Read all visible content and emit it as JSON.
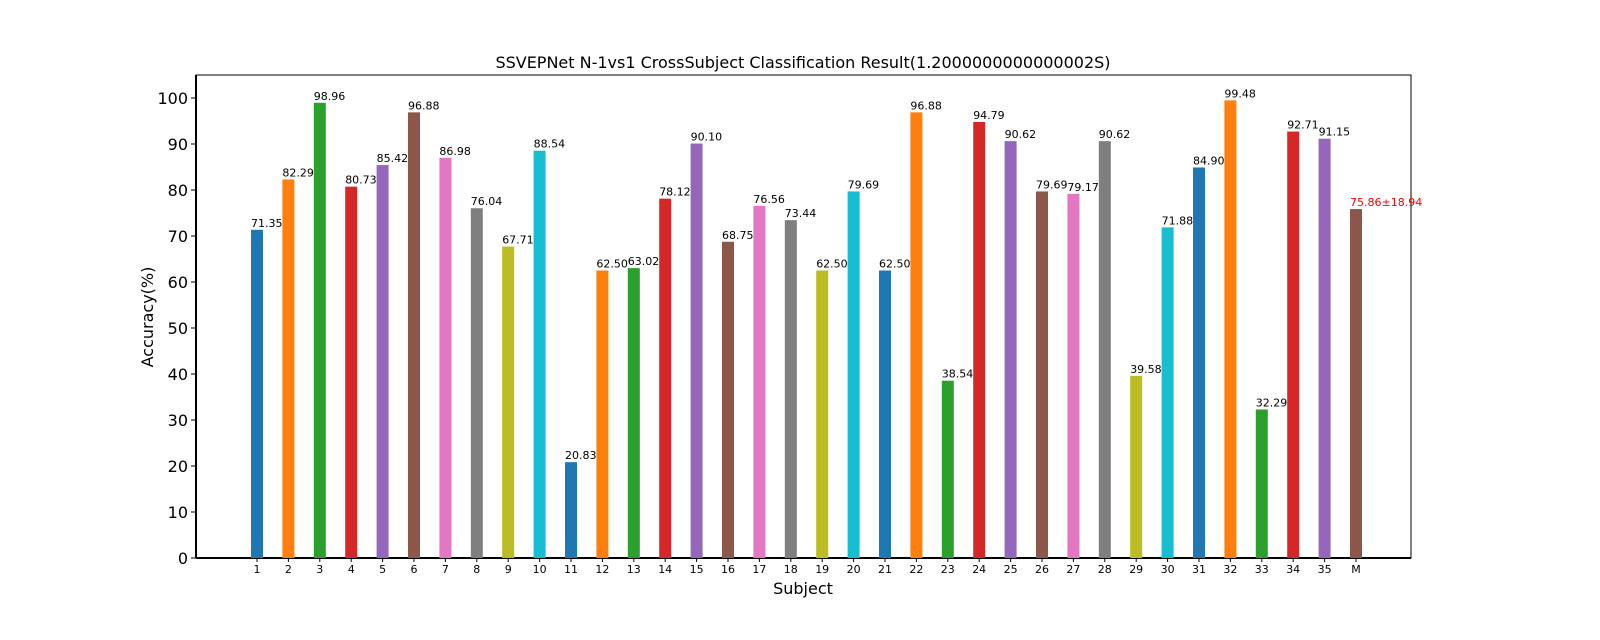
{
  "chart_data": {
    "type": "bar",
    "title": "SSVEPNet N-1vs1 CrossSubject Classification Result(1.2000000000000002S)",
    "xlabel": "Subject",
    "ylabel": "Accuracy(%)",
    "ylim": [
      0,
      105
    ],
    "yticks": [
      0,
      10,
      20,
      30,
      40,
      50,
      60,
      70,
      80,
      90,
      100
    ],
    "grid": false,
    "legend": "none",
    "categories": [
      "1",
      "2",
      "3",
      "4",
      "5",
      "6",
      "7",
      "8",
      "9",
      "10",
      "11",
      "12",
      "13",
      "14",
      "15",
      "16",
      "17",
      "18",
      "19",
      "20",
      "21",
      "22",
      "23",
      "24",
      "25",
      "26",
      "27",
      "28",
      "29",
      "30",
      "31",
      "32",
      "33",
      "34",
      "35",
      "M"
    ],
    "values": [
      71.35,
      82.29,
      98.96,
      80.73,
      85.42,
      96.88,
      86.98,
      76.04,
      67.71,
      88.54,
      20.83,
      62.5,
      63.02,
      78.12,
      90.1,
      68.75,
      76.56,
      73.44,
      62.5,
      79.69,
      62.5,
      96.88,
      38.54,
      94.79,
      90.62,
      79.69,
      79.17,
      90.62,
      39.58,
      71.88,
      84.9,
      99.48,
      32.29,
      92.71,
      91.15,
      75.86
    ],
    "data_labels": [
      "71.35",
      "82.29",
      "98.96",
      "80.73",
      "85.42",
      "96.88",
      "86.98",
      "76.04",
      "67.71",
      "88.54",
      "20.83",
      "62.50",
      "63.02",
      "78.12",
      "90.10",
      "68.75",
      "76.56",
      "73.44",
      "62.50",
      "79.69",
      "62.50",
      "96.88",
      "38.54",
      "94.79",
      "90.62",
      "79.69",
      "79.17",
      "90.62",
      "39.58",
      "71.88",
      "84.90",
      "99.48",
      "32.29",
      "92.71",
      "91.15",
      "75.86±18.94"
    ],
    "colors": [
      "#1f77b4",
      "#ff7f0e",
      "#2ca02c",
      "#d62728",
      "#9467bd",
      "#8c564b",
      "#e377c2",
      "#7f7f7f",
      "#bcbd22",
      "#17becf"
    ],
    "mean_label_color": "#ff0000"
  }
}
